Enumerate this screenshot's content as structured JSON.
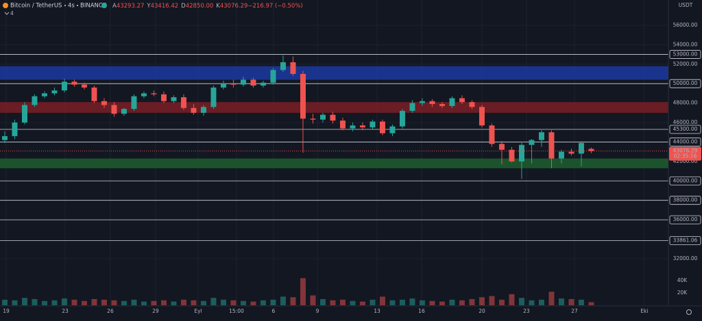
{
  "chart_data": {
    "type": "candlestick",
    "title": "Bitcoin / TetherUS",
    "interval": "4s",
    "exchange": "BINANCE",
    "hidden_count": "4",
    "ohlc_header": [
      {
        "prefix": "A",
        "text": "43293.27"
      },
      {
        "prefix": "Y",
        "text": "43416.42"
      },
      {
        "prefix": "D",
        "text": "42850.00"
      },
      {
        "prefix": "K",
        "text": "43076.29"
      },
      {
        "prefix": "",
        "text": "−216.97 (−0.50%)"
      }
    ],
    "currency": "USDT",
    "up_color": "#26a69a",
    "down_color": "#ef5350",
    "grid": true,
    "open": [
      44200,
      44600,
      46000,
      47800,
      48700,
      49000,
      49300,
      50200,
      49900,
      49600,
      48200,
      47800,
      46900,
      47400,
      48700,
      49000,
      48900,
      48200,
      48600,
      47500,
      47000,
      47600,
      49600,
      50000,
      49900,
      50400,
      49800,
      50100,
      51400,
      52200,
      51000,
      46400,
      46300,
      46800,
      46200,
      45400,
      45700,
      45500,
      46100,
      44900,
      45600,
      47200,
      48000,
      48200,
      47900,
      47700,
      48500,
      48100,
      47600,
      45700,
      43800,
      43200,
      42000,
      43700,
      44200,
      45000,
      42300,
      43000,
      42800,
      43293.27
    ],
    "high": [
      45100,
      46300,
      48100,
      48900,
      49200,
      49600,
      50500,
      50400,
      50100,
      49800,
      48500,
      48100,
      47500,
      48900,
      49200,
      49300,
      49200,
      48800,
      48900,
      47900,
      47800,
      49800,
      50300,
      50400,
      50700,
      50600,
      50300,
      51600,
      52900,
      52800,
      51300,
      46900,
      47000,
      47100,
      46500,
      46000,
      46000,
      46300,
      46300,
      45800,
      47400,
      48300,
      48500,
      48400,
      48100,
      48700,
      48800,
      48300,
      47800,
      45900,
      44100,
      43500,
      43900,
      44300,
      45200,
      45200,
      43200,
      43300,
      44000,
      43416.42
    ],
    "low": [
      43900,
      44300,
      45800,
      47600,
      48500,
      48800,
      49100,
      49700,
      49400,
      48000,
      47500,
      46600,
      46700,
      47200,
      48500,
      48700,
      48000,
      48000,
      47300,
      46800,
      46700,
      47400,
      49400,
      49600,
      49700,
      49600,
      49600,
      49900,
      51200,
      50800,
      42900,
      45900,
      46000,
      45900,
      45200,
      45100,
      45200,
      45300,
      44700,
      44600,
      45400,
      47000,
      47700,
      47600,
      47500,
      47500,
      47900,
      47400,
      45500,
      43500,
      41700,
      41900,
      40200,
      41800,
      43500,
      41300,
      41800,
      42600,
      41500,
      42850
    ],
    "close": [
      44600,
      46000,
      47800,
      48700,
      49000,
      49300,
      50200,
      49900,
      49600,
      48200,
      47800,
      46900,
      47400,
      48700,
      49000,
      48900,
      48200,
      48600,
      47500,
      47000,
      47600,
      49600,
      50000,
      49900,
      50400,
      49800,
      50100,
      51400,
      52200,
      51000,
      46400,
      46300,
      46800,
      46200,
      45400,
      45700,
      45500,
      46100,
      44900,
      45600,
      47200,
      48000,
      48200,
      47900,
      47700,
      48500,
      48100,
      47600,
      45700,
      43800,
      43200,
      42000,
      43700,
      44200,
      45000,
      42300,
      43000,
      42800,
      43900,
      43076.29
    ],
    "volume": [
      9000,
      8000,
      12000,
      10000,
      7000,
      8000,
      11000,
      9000,
      7000,
      10000,
      9000,
      8000,
      7000,
      9000,
      6000,
      7000,
      8000,
      6000,
      9000,
      8000,
      7000,
      12000,
      9000,
      8000,
      7000,
      6000,
      8000,
      9000,
      14000,
      13000,
      44000,
      16000,
      10000,
      8000,
      9000,
      7000,
      6000,
      9000,
      14000,
      8000,
      9000,
      11000,
      8000,
      7000,
      6000,
      9000,
      8000,
      10000,
      13000,
      15000,
      9000,
      18000,
      12000,
      8000,
      9000,
      22000,
      11000,
      10000,
      9000,
      5000
    ],
    "xlim": [
      -0.48,
      66.76
    ],
    "xticks": [
      {
        "value": 0.14,
        "label": "19"
      },
      {
        "value": 6.07,
        "label": "23"
      },
      {
        "value": 10.62,
        "label": "26"
      },
      {
        "value": 15.17,
        "label": "29"
      },
      {
        "value": 19.45,
        "label": "Eyl"
      },
      {
        "value": 23.31,
        "label": "15:00"
      },
      {
        "value": 27.03,
        "label": "6"
      },
      {
        "value": 31.45,
        "label": "9"
      },
      {
        "value": 37.45,
        "label": "13"
      },
      {
        "value": 41.93,
        "label": "16"
      },
      {
        "value": 48.0,
        "label": "20"
      },
      {
        "value": 52.48,
        "label": "23"
      },
      {
        "value": 57.31,
        "label": "27"
      },
      {
        "value": 64.34,
        "label": "Eki"
      }
    ],
    "ylim": [
      30800,
      58600
    ],
    "yticks": [
      {
        "value": 56000,
        "label": "56000.00"
      },
      {
        "value": 54000,
        "label": "54000.00"
      },
      {
        "value": 52000,
        "label": "52000.00"
      },
      {
        "value": 48000,
        "label": "48000.00"
      },
      {
        "value": 46000,
        "label": "46000.00"
      },
      {
        "value": 42000,
        "label": "42000.00"
      },
      {
        "value": 32000,
        "label": "32000.00"
      }
    ],
    "hlines": [
      {
        "value": 53000,
        "label": "53000.00"
      },
      {
        "value": 50000,
        "label": "50000.00"
      },
      {
        "value": 45300,
        "label": "45300.00"
      },
      {
        "value": 44000,
        "label": "44000.00"
      },
      {
        "value": 40000,
        "label": "40000.00"
      },
      {
        "value": 38000,
        "label": "38000.00"
      },
      {
        "value": 36000,
        "label": "36000.00"
      },
      {
        "value": 33861.06,
        "label": "33861.06"
      }
    ],
    "zones": [
      {
        "from": 50400,
        "to": 51800,
        "color": "#1c3aa0"
      },
      {
        "from": 47000,
        "to": 48100,
        "color": "#7a1f24"
      },
      {
        "from": 41300,
        "to": 42300,
        "color": "#1f5e2e"
      }
    ],
    "last_price": {
      "value": 43076.29,
      "label": "43076.29"
    },
    "countdown": "02:35:16",
    "vlim": [
      0,
      50000
    ],
    "vticks": [
      {
        "value": 20000,
        "label": "20K"
      },
      {
        "value": 40000,
        "label": "40K"
      }
    ]
  }
}
